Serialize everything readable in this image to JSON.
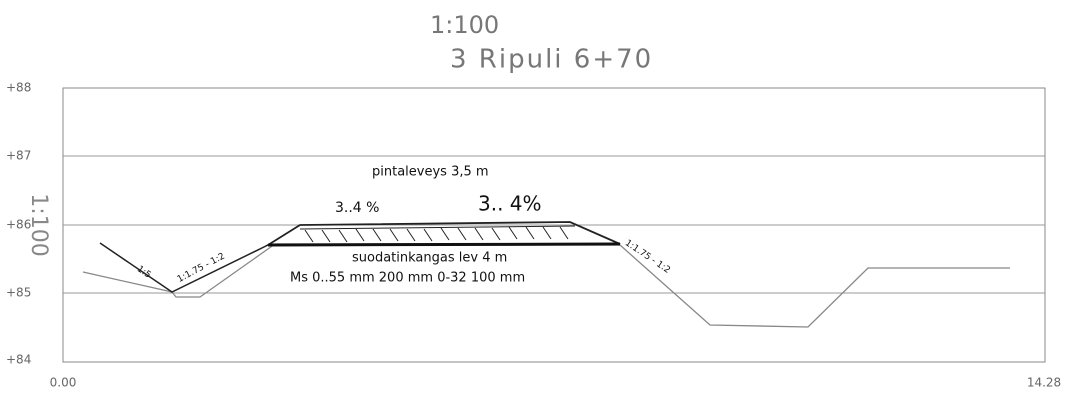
{
  "scale_top": "1:100",
  "title": "3 Ripuli 6+70",
  "scale_side": "1:100",
  "y_labels": [
    "+88",
    "+87",
    "+86",
    "+85",
    "+84"
  ],
  "x_labels": [
    "0.00",
    "14.28"
  ],
  "annotations": {
    "width": "pintaleveys 3,5 m",
    "slope_left": "3..4 %",
    "slope_right": "3.. 4%",
    "fabric": "suodatinkangas lev 4 m",
    "layers": "Ms 0..55 mm 200 mm  0-32 100 mm",
    "ratio_ditch": "1:5",
    "ratio_left": "1:1.75 - 1:2",
    "ratio_right": "1:1.75 - 1:2"
  }
}
